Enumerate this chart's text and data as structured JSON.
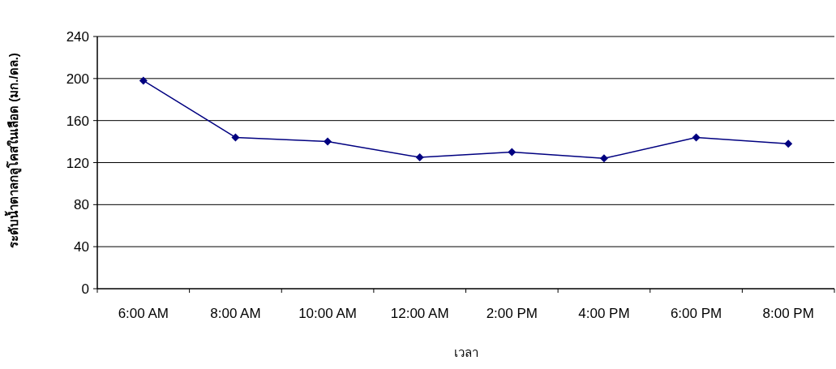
{
  "chart_data": {
    "type": "line",
    "xlabel": "เวลา",
    "ylabel": "ระดับน้ำตาลกลูโคสในเลือด (มก./ดล.)",
    "categories": [
      "6:00 AM",
      "8:00 AM",
      "10:00 AM",
      "12:00 AM",
      "2:00 PM",
      "4:00 PM",
      "6:00 PM",
      "8:00 PM"
    ],
    "series": [
      {
        "color": "#000080",
        "values": [
          198,
          144,
          140,
          125,
          130,
          124,
          144,
          138
        ]
      }
    ],
    "ylim": [
      0,
      240
    ],
    "yticks": [
      0,
      40,
      80,
      120,
      160,
      200,
      240
    ],
    "grid": "y",
    "marker": "diamond",
    "line_style": "solid"
  }
}
